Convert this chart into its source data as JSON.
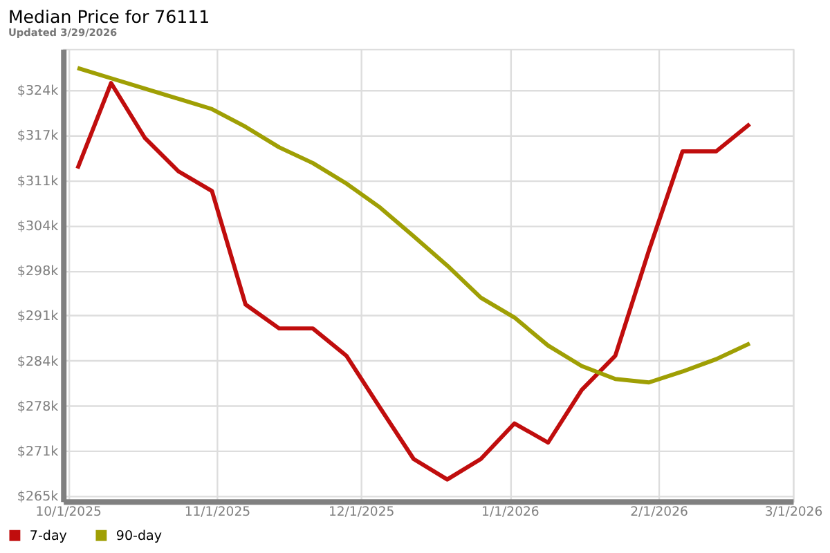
{
  "chart_data": {
    "type": "line",
    "title": "Median Price for 76111",
    "subtitle": "Updated 3/29/2026",
    "x": [
      "2025-10-03",
      "2025-10-10",
      "2025-10-17",
      "2025-10-24",
      "2025-10-31",
      "2025-11-07",
      "2025-11-14",
      "2025-11-21",
      "2025-11-28",
      "2025-12-05",
      "2025-12-12",
      "2025-12-19",
      "2025-12-26",
      "2026-01-02",
      "2026-01-09",
      "2026-01-16",
      "2026-01-23",
      "2026-01-30",
      "2026-02-06",
      "2026-02-13",
      "2026-02-20"
    ],
    "series": [
      {
        "name": "7-day",
        "color": "#c00d0d",
        "values": [
          312.5,
          325.0,
          317.0,
          312.1,
          309.2,
          292.6,
          289.1,
          289.1,
          285.1,
          277.5,
          270.0,
          267.0,
          270.0,
          275.2,
          272.4,
          280.1,
          285.1,
          300.5,
          315.0,
          315.0,
          319.0
        ]
      },
      {
        "name": "90-day",
        "color": "#9f9f04",
        "values": [
          327.2,
          325.7,
          324.2,
          322.7,
          321.2,
          318.6,
          315.6,
          313.3,
          310.3,
          306.8,
          302.6,
          298.3,
          293.6,
          290.7,
          286.6,
          283.6,
          281.7,
          281.2,
          282.8,
          284.6,
          286.9
        ]
      }
    ],
    "xlim": [
      "2025-09-30",
      "2026-03-01"
    ],
    "xticks": [
      {
        "value": "2025-10-01",
        "label": "10/1/2025"
      },
      {
        "value": "2025-11-01",
        "label": "11/1/2025"
      },
      {
        "value": "2025-12-01",
        "label": "12/1/2025"
      },
      {
        "value": "2026-01-01",
        "label": "1/1/2026"
      },
      {
        "value": "2026-02-01",
        "label": "2/1/2026"
      },
      {
        "value": "2026-03-01",
        "label": "3/1/2026"
      }
    ],
    "ylim": [
      263.8,
      330.0
    ],
    "yticks": [
      {
        "value": 264.6,
        "label": "$265k"
      },
      {
        "value": 271.2,
        "label": "$271k"
      },
      {
        "value": 277.8,
        "label": "$278k"
      },
      {
        "value": 284.4,
        "label": "$284k"
      },
      {
        "value": 291.0,
        "label": "$291k"
      },
      {
        "value": 297.6,
        "label": "$298k"
      },
      {
        "value": 304.2,
        "label": "$304k"
      },
      {
        "value": 310.8,
        "label": "$311k"
      },
      {
        "value": 317.4,
        "label": "$317k"
      },
      {
        "value": 324.0,
        "label": "$324k"
      }
    ],
    "grid": true,
    "legend": "bottom left",
    "line_style": "solid"
  }
}
